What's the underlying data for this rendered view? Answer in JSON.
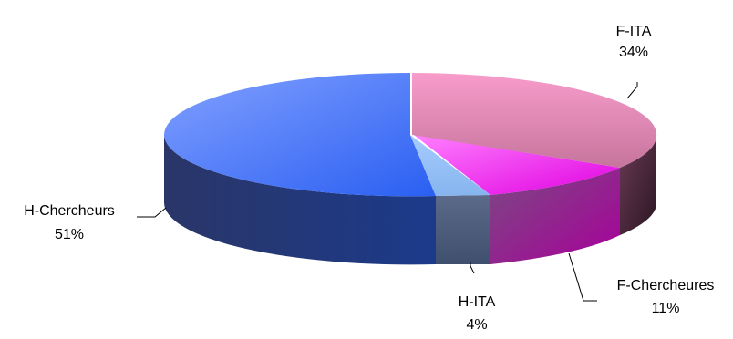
{
  "chart_data": {
    "type": "pie",
    "style": "3d-exploded",
    "title": "",
    "legend": "none",
    "slices": [
      {
        "label": "F-ITA",
        "value": 34,
        "value_label": "34%",
        "color": "#d9709f"
      },
      {
        "label": "F-Chercheures",
        "value": 11,
        "value_label": "11%",
        "color": "#e600e6"
      },
      {
        "label": "H-ITA",
        "value": 4,
        "value_label": "4%",
        "color": "#8fb8f0"
      },
      {
        "label": "H-Chercheurs",
        "value": 51,
        "value_label": "51%",
        "color": "#4a78f5"
      }
    ]
  }
}
